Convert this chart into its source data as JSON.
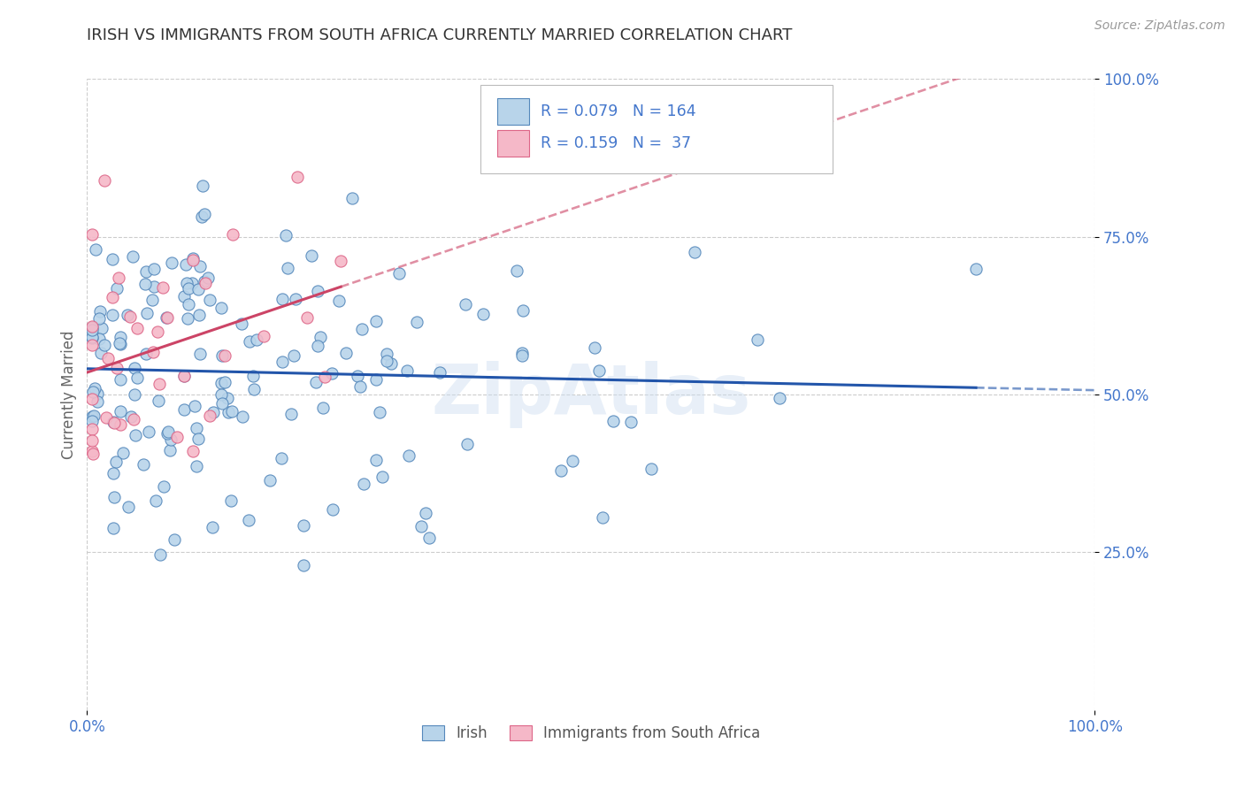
{
  "title": "IRISH VS IMMIGRANTS FROM SOUTH AFRICA CURRENTLY MARRIED CORRELATION CHART",
  "source": "Source: ZipAtlas.com",
  "ylabel": "Currently Married",
  "xlim": [
    0,
    1
  ],
  "ylim": [
    0,
    1
  ],
  "ytick_values": [
    0.25,
    0.5,
    0.75,
    1.0
  ],
  "ytick_labels": [
    "25.0%",
    "50.0%",
    "75.0%",
    "100.0%"
  ],
  "xtick_values": [
    0,
    1
  ],
  "xtick_labels": [
    "0.0%",
    "100.0%"
  ],
  "irish_color": "#b8d4ea",
  "irish_edge_color": "#5588bb",
  "sa_color": "#f5b8c8",
  "sa_edge_color": "#dd6688",
  "trend_irish_color": "#2255aa",
  "trend_sa_color": "#cc4466",
  "R_irish": 0.079,
  "N_irish": 164,
  "R_sa": 0.159,
  "N_sa": 37,
  "legend_irish": "Irish",
  "legend_sa": "Immigrants from South Africa",
  "title_color": "#333333",
  "axis_color": "#4477cc",
  "grid_color": "#cccccc",
  "watermark": "ZipAtlas"
}
